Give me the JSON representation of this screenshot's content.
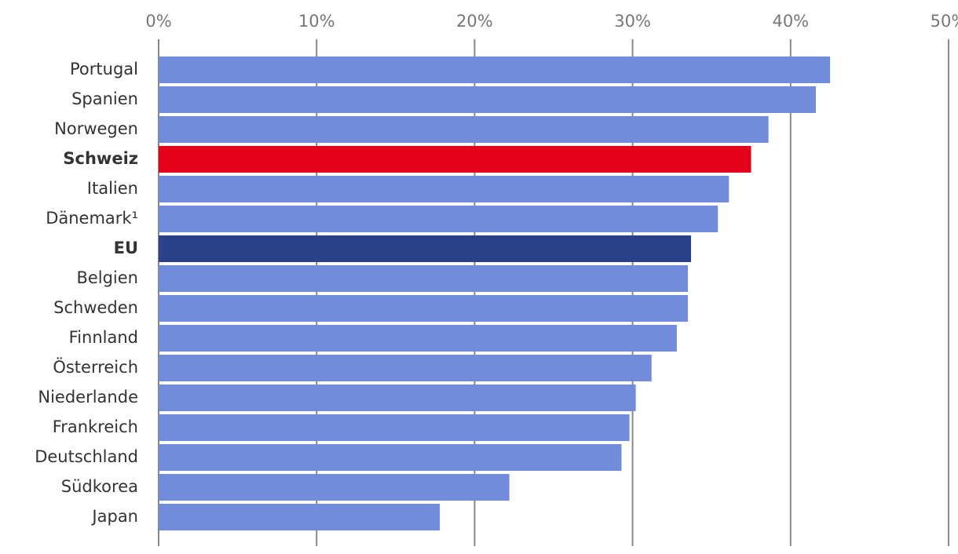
{
  "chart_data": {
    "type": "bar",
    "orientation": "horizontal",
    "categories": [
      "Portugal",
      "Spanien",
      "Norwegen",
      "Schweiz",
      "Italien",
      "Dänemark¹",
      "EU",
      "Belgien",
      "Schweden",
      "Finnland",
      "Österreich",
      "Niederlande",
      "Frankreich",
      "Deutschland",
      "Südkorea",
      "Japan"
    ],
    "values": [
      42.5,
      41.6,
      38.6,
      37.5,
      36.1,
      35.4,
      33.7,
      33.5,
      33.5,
      32.8,
      31.2,
      30.2,
      29.8,
      29.3,
      22.2,
      17.8
    ],
    "colors": [
      "#738cd9",
      "#738cd9",
      "#738cd9",
      "#e2001a",
      "#738cd9",
      "#738cd9",
      "#2b4189",
      "#738cd9",
      "#738cd9",
      "#738cd9",
      "#738cd9",
      "#738cd9",
      "#738cd9",
      "#738cd9",
      "#738cd9",
      "#738cd9"
    ],
    "bold_indices": [
      3,
      6
    ],
    "xlim": [
      0,
      50
    ],
    "xticks": [
      {
        "value": 0,
        "label": "0%"
      },
      {
        "value": 10,
        "label": "10%"
      },
      {
        "value": 20,
        "label": "20%"
      },
      {
        "value": 30,
        "label": "30%"
      },
      {
        "value": 40,
        "label": "40%"
      },
      {
        "value": 50,
        "label": "50%"
      }
    ],
    "grid": true
  }
}
